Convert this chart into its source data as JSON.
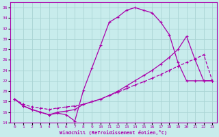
{
  "xlabel": "Windchill (Refroidissement éolien,°C)",
  "bg_color": "#c8ecec",
  "grid_color": "#aad4d4",
  "line_color": "#aa00aa",
  "xlim": [
    -0.5,
    23.5
  ],
  "ylim": [
    14,
    37
  ],
  "yticks": [
    14,
    16,
    18,
    20,
    22,
    24,
    26,
    28,
    30,
    32,
    34,
    36
  ],
  "xticks": [
    0,
    1,
    2,
    3,
    4,
    5,
    6,
    7,
    8,
    9,
    10,
    11,
    12,
    13,
    14,
    15,
    16,
    17,
    18,
    19,
    20,
    21,
    22,
    23
  ],
  "curve1_x": [
    0,
    1,
    2,
    3,
    4,
    5,
    6,
    7,
    8,
    9,
    10,
    11,
    12,
    13,
    14,
    15,
    16,
    17,
    18,
    19,
    20,
    21,
    22,
    23
  ],
  "curve1_y": [
    18.5,
    17.2,
    16.5,
    16.0,
    15.5,
    15.8,
    15.5,
    14.3,
    20.2,
    24.5,
    28.8,
    33.2,
    34.2,
    35.5,
    36.0,
    35.5,
    35.0,
    33.2,
    30.8,
    25.5,
    22.0,
    22.0,
    22.0,
    22.0
  ],
  "curve2_x": [
    0,
    1,
    2,
    3,
    4,
    5,
    6,
    7,
    8,
    9,
    10,
    11,
    12,
    13,
    14,
    15,
    16,
    17,
    18,
    19,
    20,
    21,
    22,
    23
  ],
  "curve2_y": [
    18.5,
    17.2,
    16.5,
    16.0,
    15.5,
    16.0,
    16.2,
    16.5,
    17.5,
    18.0,
    18.5,
    19.2,
    20.0,
    21.0,
    22.0,
    23.0,
    24.0,
    25.2,
    26.5,
    28.0,
    30.5,
    26.0,
    22.0,
    22.0
  ],
  "curve3_x": [
    0,
    1,
    2,
    3,
    4,
    5,
    6,
    7,
    8,
    9,
    10,
    11,
    12,
    13,
    14,
    15,
    16,
    17,
    18,
    19,
    20,
    21,
    22,
    23
  ],
  "curve3_y": [
    18.5,
    17.5,
    17.0,
    16.8,
    16.5,
    16.8,
    17.0,
    17.2,
    17.5,
    18.0,
    18.5,
    19.2,
    19.8,
    20.5,
    21.2,
    21.8,
    22.5,
    23.2,
    24.0,
    24.8,
    25.5,
    26.2,
    27.0,
    22.0
  ]
}
